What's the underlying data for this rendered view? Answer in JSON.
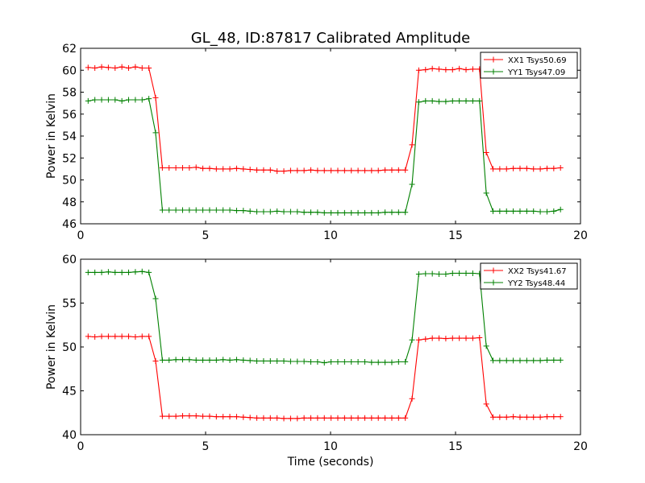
{
  "figure": {
    "title": "GL_48, ID:87817 Calibrated Amplitude",
    "xlabel": "Time (seconds)",
    "colors": {
      "XX": "#ff0000",
      "YY": "#008000",
      "axes": "#000000",
      "background": "#ffffff"
    }
  },
  "chart_data": [
    {
      "type": "line",
      "title": "GL_48, ID:87817 Calibrated Amplitude",
      "xlabel": "",
      "ylabel": "Power in Kelvin",
      "xlim": [
        0,
        20
      ],
      "ylim": [
        46,
        62
      ],
      "xticks": [
        "0",
        "5",
        "10",
        "15",
        "20"
      ],
      "yticks": [
        "46",
        "48",
        "50",
        "52",
        "54",
        "56",
        "58",
        "60",
        "62"
      ],
      "grid": false,
      "legend_position": "top-right",
      "x": [
        0.3,
        0.57,
        0.84,
        1.11,
        1.38,
        1.65,
        1.92,
        2.19,
        2.46,
        2.73,
        3.0,
        3.27,
        3.54,
        3.81,
        4.08,
        4.35,
        4.62,
        4.89,
        5.16,
        5.43,
        5.7,
        5.97,
        6.24,
        6.51,
        6.78,
        7.05,
        7.32,
        7.59,
        7.86,
        8.13,
        8.4,
        8.67,
        8.94,
        9.21,
        9.48,
        9.75,
        10.02,
        10.29,
        10.56,
        10.83,
        11.1,
        11.37,
        11.64,
        11.91,
        12.18,
        12.45,
        12.72,
        12.99,
        13.26,
        13.53,
        13.8,
        14.07,
        14.34,
        14.61,
        14.88,
        15.15,
        15.42,
        15.69,
        15.96,
        16.23,
        16.5,
        16.77,
        17.04,
        17.31,
        17.58,
        17.85,
        18.12,
        18.39,
        18.66,
        18.93,
        19.2
      ],
      "series": [
        {
          "name": "XX1 Tsys50.69",
          "color": "#ff0000",
          "values": [
            60.25,
            60.2,
            60.3,
            60.25,
            60.2,
            60.3,
            60.2,
            60.3,
            60.2,
            60.2,
            57.5,
            51.1,
            51.1,
            51.1,
            51.1,
            51.1,
            51.15,
            51.05,
            51.05,
            51.0,
            51.0,
            51.0,
            51.05,
            51.0,
            50.95,
            50.9,
            50.9,
            50.9,
            50.8,
            50.8,
            50.85,
            50.85,
            50.85,
            50.9,
            50.85,
            50.85,
            50.85,
            50.85,
            50.85,
            50.85,
            50.85,
            50.85,
            50.85,
            50.85,
            50.9,
            50.9,
            50.9,
            50.9,
            53.2,
            60.0,
            60.05,
            60.15,
            60.1,
            60.05,
            60.05,
            60.15,
            60.05,
            60.1,
            60.1,
            52.5,
            51.0,
            51.0,
            51.0,
            51.05,
            51.05,
            51.05,
            51.0,
            51.0,
            51.05,
            51.05,
            51.1
          ]
        },
        {
          "name": "YY1 Tsys47.09",
          "color": "#008000",
          "values": [
            57.2,
            57.3,
            57.3,
            57.3,
            57.3,
            57.2,
            57.3,
            57.3,
            57.3,
            57.4,
            54.3,
            47.25,
            47.25,
            47.25,
            47.25,
            47.25,
            47.25,
            47.25,
            47.25,
            47.25,
            47.25,
            47.25,
            47.2,
            47.2,
            47.15,
            47.1,
            47.1,
            47.1,
            47.15,
            47.1,
            47.1,
            47.1,
            47.05,
            47.05,
            47.05,
            47.0,
            47.0,
            47.0,
            47.0,
            47.0,
            47.0,
            47.0,
            47.0,
            47.0,
            47.05,
            47.05,
            47.05,
            47.05,
            49.6,
            57.1,
            57.2,
            57.2,
            57.15,
            57.15,
            57.2,
            57.2,
            57.2,
            57.2,
            57.2,
            48.8,
            47.15,
            47.15,
            47.15,
            47.15,
            47.15,
            47.15,
            47.15,
            47.1,
            47.1,
            47.15,
            47.3
          ]
        }
      ]
    },
    {
      "type": "line",
      "title": "",
      "xlabel": "Time (seconds)",
      "ylabel": "Power in Kelvin",
      "xlim": [
        0,
        20
      ],
      "ylim": [
        40,
        60
      ],
      "xticks": [
        "0",
        "5",
        "10",
        "15",
        "20"
      ],
      "yticks": [
        "40",
        "45",
        "50",
        "55",
        "60"
      ],
      "grid": false,
      "legend_position": "top-right",
      "x": [
        0.3,
        0.57,
        0.84,
        1.11,
        1.38,
        1.65,
        1.92,
        2.19,
        2.46,
        2.73,
        3.0,
        3.27,
        3.54,
        3.81,
        4.08,
        4.35,
        4.62,
        4.89,
        5.16,
        5.43,
        5.7,
        5.97,
        6.24,
        6.51,
        6.78,
        7.05,
        7.32,
        7.59,
        7.86,
        8.13,
        8.4,
        8.67,
        8.94,
        9.21,
        9.48,
        9.75,
        10.02,
        10.29,
        10.56,
        10.83,
        11.1,
        11.37,
        11.64,
        11.91,
        12.18,
        12.45,
        12.72,
        12.99,
        13.26,
        13.53,
        13.8,
        14.07,
        14.34,
        14.61,
        14.88,
        15.15,
        15.42,
        15.69,
        15.96,
        16.23,
        16.5,
        16.77,
        17.04,
        17.31,
        17.58,
        17.85,
        18.12,
        18.39,
        18.66,
        18.93,
        19.2
      ],
      "series": [
        {
          "name": "XX2 Tsys41.67",
          "color": "#ff0000",
          "values": [
            51.2,
            51.15,
            51.2,
            51.2,
            51.2,
            51.2,
            51.2,
            51.15,
            51.2,
            51.2,
            48.4,
            42.1,
            42.1,
            42.1,
            42.15,
            42.15,
            42.15,
            42.1,
            42.1,
            42.05,
            42.05,
            42.05,
            42.05,
            42.0,
            41.95,
            41.9,
            41.9,
            41.9,
            41.9,
            41.85,
            41.85,
            41.85,
            41.9,
            41.9,
            41.9,
            41.9,
            41.9,
            41.9,
            41.9,
            41.9,
            41.9,
            41.9,
            41.9,
            41.9,
            41.9,
            41.9,
            41.9,
            41.9,
            44.1,
            50.8,
            50.9,
            51.0,
            51.0,
            50.95,
            51.0,
            51.0,
            51.0,
            51.0,
            51.05,
            43.5,
            42.0,
            42.0,
            42.0,
            42.05,
            42.0,
            42.0,
            42.0,
            42.0,
            42.05,
            42.05,
            42.05
          ]
        },
        {
          "name": "YY2 Tsys48.44",
          "color": "#008000",
          "values": [
            58.5,
            58.5,
            58.5,
            58.55,
            58.5,
            58.5,
            58.5,
            58.55,
            58.6,
            58.5,
            55.5,
            48.5,
            48.5,
            48.55,
            48.55,
            48.55,
            48.5,
            48.5,
            48.5,
            48.5,
            48.55,
            48.5,
            48.55,
            48.5,
            48.45,
            48.4,
            48.4,
            48.4,
            48.4,
            48.4,
            48.35,
            48.35,
            48.35,
            48.3,
            48.3,
            48.2,
            48.3,
            48.3,
            48.3,
            48.3,
            48.3,
            48.3,
            48.25,
            48.25,
            48.25,
            48.25,
            48.3,
            48.3,
            50.8,
            58.3,
            58.35,
            58.35,
            58.3,
            58.3,
            58.4,
            58.4,
            58.4,
            58.4,
            58.35,
            50.1,
            48.45,
            48.45,
            48.45,
            48.45,
            48.45,
            48.45,
            48.45,
            48.45,
            48.5,
            48.5,
            48.5
          ]
        }
      ]
    }
  ]
}
